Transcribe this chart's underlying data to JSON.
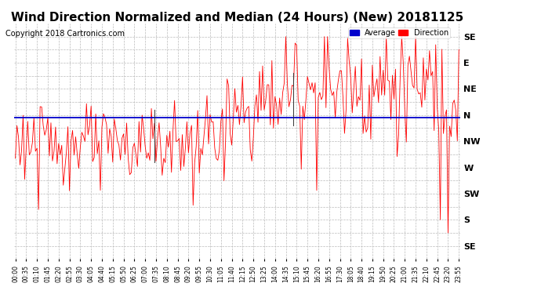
{
  "title": "Wind Direction Normalized and Median (24 Hours) (New) 20181125",
  "copyright": "Copyright 2018 Cartronics.com",
  "ytick_labels_top_to_bottom": [
    "SE",
    "E",
    "NE",
    "N",
    "NW",
    "W",
    "SW",
    "S",
    "SE"
  ],
  "ytick_values": [
    9,
    8,
    7,
    6,
    5,
    4,
    3,
    2,
    1
  ],
  "ylim": [
    0.5,
    9.5
  ],
  "avg_line_y": 5.9,
  "avg_line_color": "#0000cc",
  "data_color": "#ff0000",
  "dark_line_color": "#333333",
  "grid_color": "#bbbbbb",
  "background_color": "#ffffff",
  "title_fontsize": 11,
  "copyright_fontsize": 7,
  "legend_avg_color": "#0000cc",
  "legend_dir_color": "#ff0000",
  "legend_avg_text": "Average",
  "legend_dir_text": "Direction",
  "xtick_labels": [
    "00:00",
    "00:35",
    "01:10",
    "01:45",
    "02:20",
    "02:55",
    "03:30",
    "04:05",
    "04:40",
    "05:15",
    "05:50",
    "06:25",
    "07:00",
    "07:35",
    "08:10",
    "08:45",
    "09:20",
    "09:55",
    "10:30",
    "11:05",
    "11:40",
    "12:15",
    "12:50",
    "13:25",
    "14:00",
    "14:35",
    "15:10",
    "15:45",
    "16:20",
    "16:55",
    "17:30",
    "18:05",
    "18:40",
    "19:15",
    "19:50",
    "20:25",
    "21:00",
    "21:35",
    "22:10",
    "22:45",
    "23:20",
    "23:55"
  ]
}
